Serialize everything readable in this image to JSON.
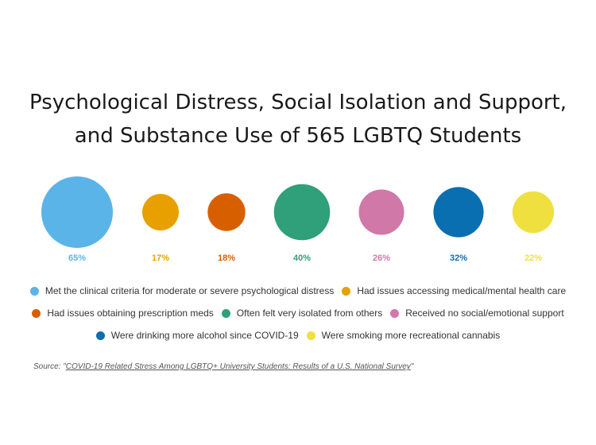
{
  "title": {
    "line1": "Psychological Distress, Social Isolation and Support,",
    "line2": "and Substance Use of 565 LGBTQ Students"
  },
  "chart_data": {
    "type": "bubble",
    "title": "Psychological Distress, Social Isolation and Support, and Substance Use of 565 LGBTQ Students",
    "unit": "%",
    "series": [
      {
        "name": "Met the clinical criteria for moderate or severe psychological distress",
        "value": 65,
        "label": "65%",
        "color": "#5ab4e8"
      },
      {
        "name": "Had issues accessing medical/mental health care",
        "value": 17,
        "label": "17%",
        "color": "#e8a000"
      },
      {
        "name": "Had issues obtaining prescription meds",
        "value": 18,
        "label": "18%",
        "color": "#d85f00"
      },
      {
        "name": "Often felt very isolated from others",
        "value": 40,
        "label": "40%",
        "color": "#2fa07a"
      },
      {
        "name": "Received no social/emotional support",
        "value": 26,
        "label": "26%",
        "color": "#d078a8"
      },
      {
        "name": "Were drinking more alcohol since COVID-19",
        "value": 32,
        "label": "32%",
        "color": "#0a6fb0"
      },
      {
        "name": "Were smoking more recreational cannabis",
        "value": 22,
        "label": "22%",
        "color": "#efe040"
      }
    ],
    "legend_position": "bottom"
  },
  "legend_rows": [
    [
      0,
      1
    ],
    [
      2,
      3,
      4
    ],
    [
      5,
      6
    ]
  ],
  "source": {
    "prefix": "Source: \"",
    "link_text": "COVID-19 Related Stress Among LGBTQ+ University Students: Results of a U.S. National Survey",
    "suffix": "\""
  }
}
